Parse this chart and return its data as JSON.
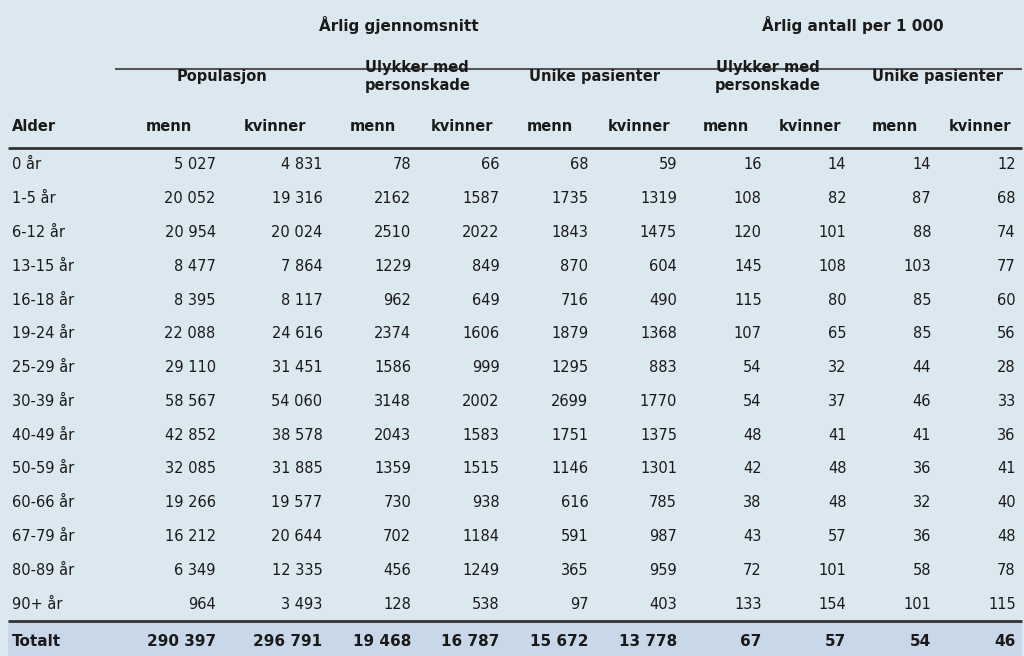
{
  "background_color": "#dce8f0",
  "total_row_bg": "#c8d8e8",
  "header1_left": "Årlig gjennomsnitt",
  "header1_right": "Årlig antall per 1 000",
  "header2_spans": [
    [
      1,
      2,
      "Populasjon"
    ],
    [
      3,
      4,
      "Ulykker med\npersonskade"
    ],
    [
      5,
      6,
      "Unike pasienter"
    ],
    [
      7,
      8,
      "Ulykker med\npersonskade"
    ],
    [
      9,
      10,
      "Unike pasienter"
    ]
  ],
  "header3_col0": "Alder",
  "header3_subheaders": [
    "menn",
    "kvinner",
    "menn",
    "kvinner",
    "menn",
    "kvinner",
    "menn",
    "kvinner",
    "menn",
    "kvinner"
  ],
  "rows": [
    [
      "0 år",
      "5 027",
      "4 831",
      "78",
      "66",
      "68",
      "59",
      "16",
      "14",
      "14",
      "12"
    ],
    [
      "1-5 år",
      "20 052",
      "19 316",
      "2162",
      "1587",
      "1735",
      "1319",
      "108",
      "82",
      "87",
      "68"
    ],
    [
      "6-12 år",
      "20 954",
      "20 024",
      "2510",
      "2022",
      "1843",
      "1475",
      "120",
      "101",
      "88",
      "74"
    ],
    [
      "13-15 år",
      "8 477",
      "7 864",
      "1229",
      "849",
      "870",
      "604",
      "145",
      "108",
      "103",
      "77"
    ],
    [
      "16-18 år",
      "8 395",
      "8 117",
      "962",
      "649",
      "716",
      "490",
      "115",
      "80",
      "85",
      "60"
    ],
    [
      "19-24 år",
      "22 088",
      "24 616",
      "2374",
      "1606",
      "1879",
      "1368",
      "107",
      "65",
      "85",
      "56"
    ],
    [
      "25-29 år",
      "29 110",
      "31 451",
      "1586",
      "999",
      "1295",
      "883",
      "54",
      "32",
      "44",
      "28"
    ],
    [
      "30-39 år",
      "58 567",
      "54 060",
      "3148",
      "2002",
      "2699",
      "1770",
      "54",
      "37",
      "46",
      "33"
    ],
    [
      "40-49 år",
      "42 852",
      "38 578",
      "2043",
      "1583",
      "1751",
      "1375",
      "48",
      "41",
      "41",
      "36"
    ],
    [
      "50-59 år",
      "32 085",
      "31 885",
      "1359",
      "1515",
      "1146",
      "1301",
      "42",
      "48",
      "36",
      "41"
    ],
    [
      "60-66 år",
      "19 266",
      "19 577",
      "730",
      "938",
      "616",
      "785",
      "38",
      "48",
      "32",
      "40"
    ],
    [
      "67-79 år",
      "16 212",
      "20 644",
      "702",
      "1184",
      "591",
      "987",
      "43",
      "57",
      "36",
      "48"
    ],
    [
      "80-89 år",
      "6 349",
      "12 335",
      "456",
      "1249",
      "365",
      "959",
      "72",
      "101",
      "58",
      "78"
    ],
    [
      "90+ år",
      "964",
      "3 493",
      "128",
      "538",
      "97",
      "403",
      "133",
      "154",
      "101",
      "115"
    ]
  ],
  "totals": [
    "Totalt",
    "290 397",
    "296 791",
    "19 468",
    "16 787",
    "15 672",
    "13 778",
    "67",
    "57",
    "54",
    "46"
  ],
  "line_color": "#555555",
  "text_color": "#1a1a1a",
  "font_size": 10.5
}
